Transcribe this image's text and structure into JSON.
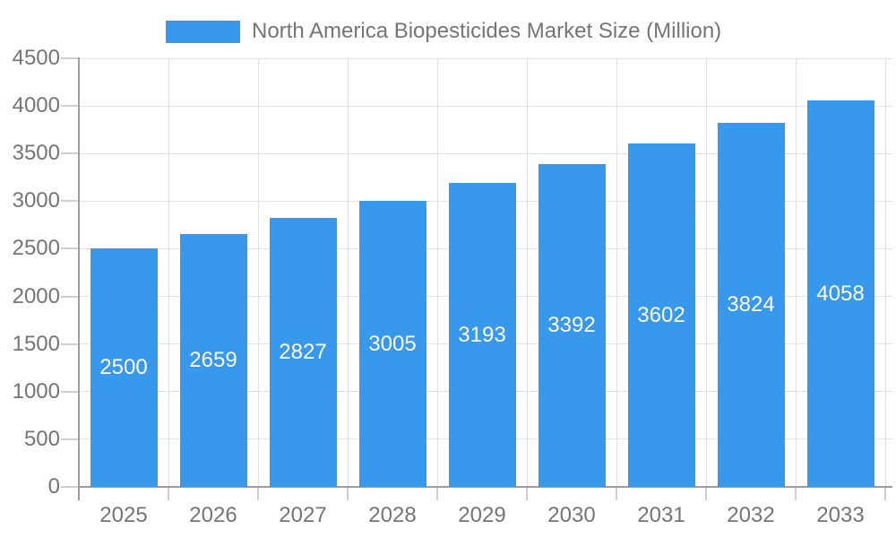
{
  "legend": {
    "label": "North America Biopesticides Market Size (Million)"
  },
  "chart_data": {
    "type": "bar",
    "title": "North America Biopesticides Market Size (Million)",
    "categories": [
      "2025",
      "2026",
      "2027",
      "2028",
      "2029",
      "2030",
      "2031",
      "2032",
      "2033"
    ],
    "values": [
      2500,
      2659,
      2827,
      3005,
      3193,
      3392,
      3602,
      3824,
      4058
    ],
    "xlabel": "",
    "ylabel": "",
    "ylim": [
      0,
      4500
    ],
    "ytick_step": 500,
    "ytick_labels": [
      "0",
      "500",
      "1000",
      "1500",
      "2000",
      "2500",
      "3000",
      "3500",
      "4000",
      "4500"
    ],
    "grid": true,
    "legend_position": "top",
    "bar_color": "#3899EC",
    "value_label_color": "#FFFFFF",
    "axis_text_color": "#757575",
    "gridline_color": "#E2E2E2",
    "axis_line_color": "#9E9E9E"
  }
}
